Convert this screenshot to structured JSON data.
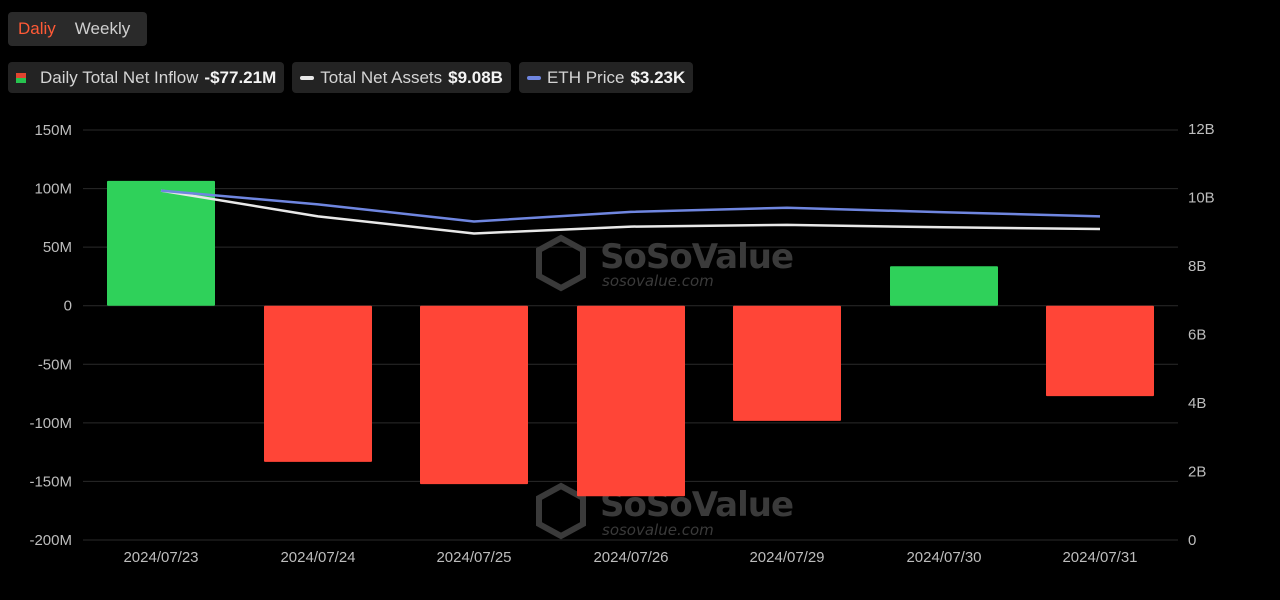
{
  "tabs": [
    {
      "label": "Daliy",
      "active": true
    },
    {
      "label": "Weekly",
      "active": false
    }
  ],
  "legend": [
    {
      "label": "Daily Total Net Inflow",
      "value": "-$77.21M",
      "icon": "red-green-square-icon"
    },
    {
      "label": "Total Net Assets",
      "value": "$9.08B",
      "icon": "white-line-icon",
      "color": "#e8e8e8"
    },
    {
      "label": "ETH Price",
      "value": "$3.23K",
      "icon": "blue-line-icon",
      "color": "#6f86e0"
    }
  ],
  "watermark": {
    "brand": "SoSoValue",
    "url": "sosovalue.com"
  },
  "colors": {
    "positive": "#2fd15a",
    "negative": "#ff4537",
    "assets_line": "#e8e8e8",
    "price_line": "#6f86e0",
    "grid": "#2a2a2a"
  },
  "chart_data": {
    "type": "bar",
    "categories": [
      "2024/07/23",
      "2024/07/24",
      "2024/07/25",
      "2024/07/26",
      "2024/07/29",
      "2024/07/30",
      "2024/07/31"
    ],
    "left_axis": {
      "ticks": [
        "150M",
        "100M",
        "50M",
        "0",
        "-50M",
        "-100M",
        "-150M",
        "-200M"
      ],
      "ylim": [
        -200,
        150
      ],
      "unit": "M"
    },
    "right_axis": {
      "ticks": [
        "12B",
        "10B",
        "8B",
        "6B",
        "4B",
        "2B",
        "0"
      ],
      "ylim": [
        0,
        12
      ],
      "unit": "B"
    },
    "series": [
      {
        "name": "Daily Total Net Inflow",
        "type": "bar",
        "axis": "left",
        "values": [
          106.6,
          -133.3,
          -152.3,
          -162.7,
          -98.3,
          33.7,
          -77.2
        ]
      },
      {
        "name": "Total Net Assets",
        "type": "line",
        "axis": "right",
        "values": [
          10.2,
          9.45,
          8.95,
          9.15,
          9.2,
          9.13,
          9.08
        ]
      },
      {
        "name": "ETH Price",
        "type": "line",
        "axis": "right",
        "values": [
          10.2,
          9.8,
          9.3,
          9.58,
          9.7,
          9.57,
          9.45
        ]
      }
    ],
    "grid": true
  }
}
